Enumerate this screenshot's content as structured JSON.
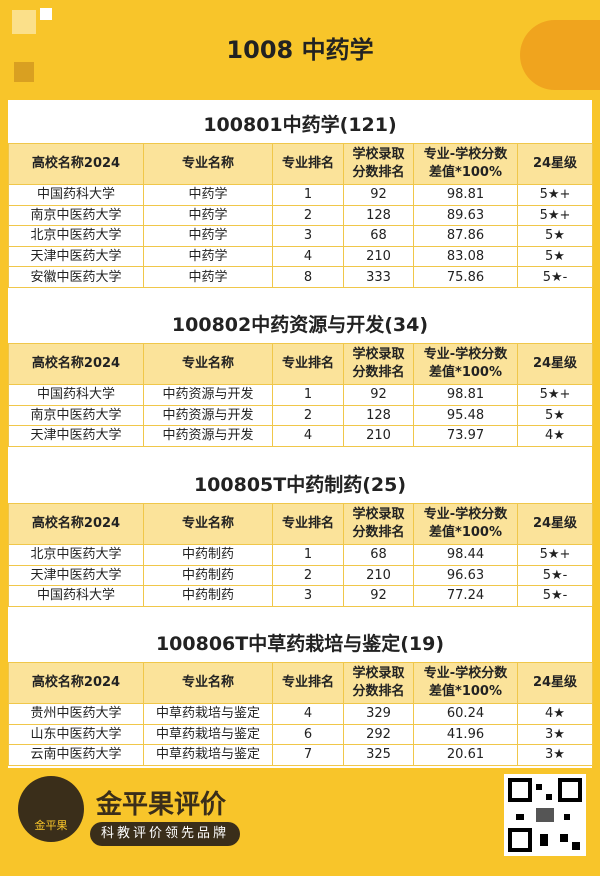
{
  "header": {
    "title": "1008 中药学"
  },
  "sections": [
    {
      "title": "100801中药学(121)",
      "columns": [
        "高校名称2024",
        "专业名称",
        "专业排名",
        "学校录取\n分数排名",
        "专业-学校分数\n差值*100%",
        "24星级"
      ],
      "rows": [
        [
          "中国药科大学",
          "中药学",
          1,
          92,
          98.81,
          "5★+"
        ],
        [
          "南京中医药大学",
          "中药学",
          2,
          128,
          89.63,
          "5★+"
        ],
        [
          "北京中医药大学",
          "中药学",
          3,
          68,
          87.86,
          "5★"
        ],
        [
          "天津中医药大学",
          "中药学",
          4,
          210,
          83.08,
          "5★"
        ],
        [
          "安徽中医药大学",
          "中药学",
          8,
          333,
          75.86,
          "5★-"
        ]
      ]
    },
    {
      "title": "100802中药资源与开发(34)",
      "columns": [
        "高校名称2024",
        "专业名称",
        "专业排名",
        "学校录取\n分数排名",
        "专业-学校分数\n差值*100%",
        "24星级"
      ],
      "rows": [
        [
          "中国药科大学",
          "中药资源与开发",
          1,
          92,
          98.81,
          "5★+"
        ],
        [
          "南京中医药大学",
          "中药资源与开发",
          2,
          128,
          95.48,
          "5★"
        ],
        [
          "天津中医药大学",
          "中药资源与开发",
          4,
          210,
          73.97,
          "4★"
        ]
      ]
    },
    {
      "title": "100805T中药制药(25)",
      "columns": [
        "高校名称2024",
        "专业名称",
        "专业排名",
        "学校录取\n分数排名",
        "专业-学校分数\n差值*100%",
        "24星级"
      ],
      "rows": [
        [
          "北京中医药大学",
          "中药制药",
          1,
          68,
          98.44,
          "5★+"
        ],
        [
          "天津中医药大学",
          "中药制药",
          2,
          210,
          96.63,
          "5★-"
        ],
        [
          "中国药科大学",
          "中药制药",
          3,
          92,
          77.24,
          "5★-"
        ]
      ]
    },
    {
      "title": "100806T中草药栽培与鉴定(19)",
      "columns": [
        "高校名称2024",
        "专业名称",
        "专业排名",
        "学校录取\n分数排名",
        "专业-学校分数\n差值*100%",
        "24星级"
      ],
      "rows": [
        [
          "贵州中医药大学",
          "中草药栽培与鉴定",
          4,
          329,
          60.24,
          "4★"
        ],
        [
          "山东中医药大学",
          "中草药栽培与鉴定",
          6,
          292,
          41.96,
          "3★"
        ],
        [
          "云南中医药大学",
          "中草药栽培与鉴定",
          7,
          325,
          20.61,
          "3★"
        ]
      ]
    }
  ],
  "footer": {
    "logo_text": "金平果",
    "brand": "金平果评价",
    "slogan": "科教评价领先品牌"
  }
}
